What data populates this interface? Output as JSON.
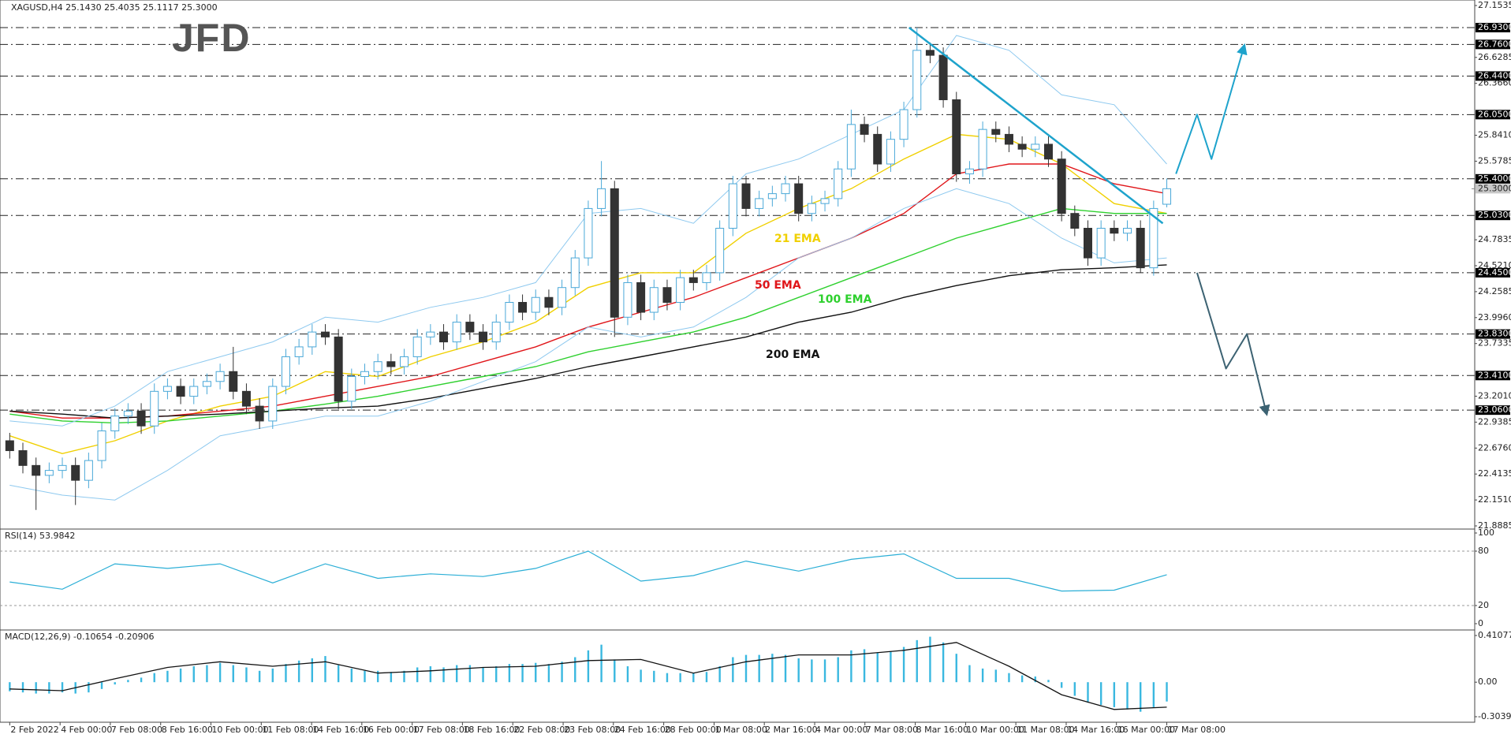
{
  "chart_data": [
    {
      "type": "candlestick",
      "title": "XAGUSD,H4  25.1430 25.4035 25.1117 25.3000",
      "logo": "JFD",
      "open": [
        22.75,
        22.65,
        22.5,
        22.4,
        22.45,
        22.5,
        22.35,
        22.55,
        22.85,
        23.0,
        23.05,
        22.9,
        23.25,
        23.3,
        23.2,
        23.3,
        23.35,
        23.45,
        23.25,
        23.1,
        22.95,
        23.3,
        23.6,
        23.7,
        23.85,
        23.8,
        23.15,
        23.4,
        23.45,
        23.55,
        23.5,
        23.6,
        23.8,
        23.85,
        23.75,
        23.95,
        23.85,
        23.75,
        23.95,
        24.15,
        24.05,
        24.2,
        24.1,
        24.3,
        24.6,
        25.1,
        25.3,
        24.0,
        24.35,
        24.05,
        24.3,
        24.15,
        24.4,
        24.35,
        24.45,
        24.9,
        25.35,
        25.1,
        25.2,
        25.25,
        25.35,
        25.05,
        25.15,
        25.2,
        25.5,
        25.95,
        25.85,
        25.55,
        25.8,
        26.1,
        26.7,
        26.65,
        26.2,
        25.45,
        25.5,
        25.9,
        25.85,
        25.75,
        25.7,
        25.75,
        25.6,
        25.05,
        24.9,
        24.6,
        24.9,
        24.85,
        24.9,
        24.5,
        25.143
      ],
      "high": [
        22.83,
        22.73,
        22.58,
        22.53,
        22.58,
        22.58,
        22.63,
        22.93,
        23.08,
        23.13,
        23.13,
        23.33,
        23.38,
        23.38,
        23.38,
        23.43,
        23.53,
        23.7,
        23.33,
        23.18,
        23.38,
        23.68,
        23.78,
        23.93,
        23.93,
        23.88,
        23.48,
        23.53,
        23.63,
        23.63,
        23.68,
        23.88,
        23.93,
        23.93,
        24.03,
        24.03,
        23.93,
        24.03,
        24.23,
        24.23,
        24.28,
        24.28,
        24.38,
        24.68,
        25.18,
        25.58,
        25.38,
        24.43,
        24.43,
        24.38,
        24.38,
        24.48,
        24.48,
        24.53,
        24.98,
        25.43,
        25.43,
        25.28,
        25.33,
        25.43,
        25.43,
        25.23,
        25.28,
        25.58,
        26.1,
        26.03,
        25.93,
        25.88,
        26.18,
        26.93,
        26.78,
        26.73,
        26.28,
        25.58,
        25.98,
        25.98,
        25.93,
        25.83,
        25.83,
        25.83,
        25.68,
        25.13,
        24.98,
        24.98,
        24.98,
        24.98,
        24.98,
        25.18,
        25.4035
      ],
      "low": [
        22.57,
        22.42,
        22.05,
        22.32,
        22.37,
        22.1,
        22.27,
        22.47,
        22.77,
        22.92,
        22.82,
        22.82,
        23.17,
        23.12,
        23.12,
        23.22,
        23.27,
        23.17,
        23.02,
        22.87,
        22.87,
        23.22,
        23.52,
        23.62,
        23.72,
        23.07,
        23.07,
        23.32,
        23.37,
        23.42,
        23.42,
        23.52,
        23.72,
        23.67,
        23.67,
        23.77,
        23.67,
        23.67,
        23.87,
        23.97,
        23.97,
        24.02,
        24.02,
        24.22,
        24.52,
        25.02,
        23.8,
        23.92,
        23.97,
        23.97,
        24.07,
        24.07,
        24.27,
        24.27,
        24.37,
        24.82,
        25.02,
        25.02,
        25.12,
        25.17,
        24.97,
        24.97,
        25.07,
        25.12,
        25.42,
        25.77,
        25.47,
        25.47,
        25.72,
        26.02,
        26.57,
        26.12,
        25.37,
        25.35,
        25.42,
        25.77,
        25.67,
        25.62,
        25.62,
        25.52,
        24.97,
        24.82,
        24.52,
        24.52,
        24.77,
        24.77,
        24.45,
        24.42,
        25.1117
      ],
      "close": [
        22.65,
        22.5,
        22.4,
        22.45,
        22.5,
        22.35,
        22.55,
        22.85,
        23.0,
        23.05,
        22.9,
        23.25,
        23.3,
        23.2,
        23.3,
        23.35,
        23.45,
        23.25,
        23.1,
        22.95,
        23.3,
        23.6,
        23.7,
        23.85,
        23.8,
        23.15,
        23.4,
        23.45,
        23.55,
        23.5,
        23.6,
        23.8,
        23.85,
        23.75,
        23.95,
        23.85,
        23.75,
        23.95,
        24.15,
        24.05,
        24.2,
        24.1,
        24.3,
        24.6,
        25.1,
        25.3,
        24.0,
        24.35,
        24.05,
        24.3,
        24.15,
        24.4,
        24.35,
        24.45,
        24.9,
        25.35,
        25.1,
        25.2,
        25.25,
        25.35,
        25.05,
        25.15,
        25.2,
        25.5,
        25.95,
        25.85,
        25.55,
        25.8,
        26.1,
        26.7,
        26.65,
        26.2,
        25.45,
        25.5,
        25.9,
        25.85,
        25.75,
        25.7,
        25.75,
        25.6,
        25.05,
        24.9,
        24.6,
        24.9,
        24.85,
        24.9,
        24.5,
        25.1,
        25.3
      ],
      "up_color": "#4aa8d8",
      "down_color": "#333333",
      "xlim": [
        -0.5,
        111.3
      ],
      "xticks": [
        {
          "value": 0,
          "label": "2 Feb 2022"
        },
        {
          "value": 3.83,
          "label": "4 Feb 00:00"
        },
        {
          "value": 7.65,
          "label": "7 Feb 08:00"
        },
        {
          "value": 11.48,
          "label": "8 Feb 16:00"
        },
        {
          "value": 15.3,
          "label": "10 Feb 00:00"
        },
        {
          "value": 19.13,
          "label": "11 Feb 08:00"
        },
        {
          "value": 22.96,
          "label": "14 Feb 16:00"
        },
        {
          "value": 26.78,
          "label": "16 Feb 00:00"
        },
        {
          "value": 30.61,
          "label": "17 Feb 08:00"
        },
        {
          "value": 34.43,
          "label": "18 Feb 16:00"
        },
        {
          "value": 38.26,
          "label": "22 Feb 08:00"
        },
        {
          "value": 42.09,
          "label": "23 Feb 08:00"
        },
        {
          "value": 45.91,
          "label": "24 Feb 16:00"
        },
        {
          "value": 49.74,
          "label": "28 Feb 00:00"
        },
        {
          "value": 53.57,
          "label": "1 Mar 08:00"
        },
        {
          "value": 57.39,
          "label": "2 Mar 16:00"
        },
        {
          "value": 61.22,
          "label": "4 Mar 00:00"
        },
        {
          "value": 65.04,
          "label": "7 Mar 08:00"
        },
        {
          "value": 68.87,
          "label": "8 Mar 16:00"
        },
        {
          "value": 72.7,
          "label": "10 Mar 00:00"
        },
        {
          "value": 76.52,
          "label": "11 Mar 08:00"
        },
        {
          "value": 80.35,
          "label": "14 Mar 16:00"
        },
        {
          "value": 84.17,
          "label": "16 Mar 00:00"
        },
        {
          "value": 88,
          "label": "17 Mar 08:00"
        }
      ],
      "ylim": [
        21.8885,
        27.1535
      ],
      "yticks": [
        27.1535,
        26.6285,
        {
          "value": 26.366,
          "label": "26.3660"
        },
        {
          "value": 25.841,
          "label": "25.8410"
        },
        25.5785,
        24.7835,
        {
          "value": 24.521,
          "label": "24.5210"
        },
        24.2585,
        {
          "value": 23.996,
          "label": "23.9960"
        },
        23.7335,
        {
          "value": 23.201,
          "label": "23.2010"
        },
        22.9385,
        {
          "value": 22.676,
          "label": "22.6760"
        },
        22.4135,
        {
          "value": 22.151,
          "label": "22.1510"
        },
        21.8885
      ],
      "series": [
        {
          "name": "21 EMA",
          "color": "#f0d000",
          "x": [
            0,
            4,
            8,
            12,
            16,
            20,
            24,
            28,
            32,
            36,
            40,
            44,
            48,
            52,
            56,
            60,
            64,
            68,
            72,
            76,
            80,
            84,
            88
          ],
          "values": [
            22.8,
            22.62,
            22.75,
            22.95,
            23.1,
            23.2,
            23.45,
            23.4,
            23.6,
            23.75,
            23.95,
            24.3,
            24.45,
            24.45,
            24.85,
            25.1,
            25.3,
            25.6,
            25.85,
            25.8,
            25.55,
            25.15,
            25.05
          ]
        },
        {
          "name": "50 EMA",
          "color": "#e0161a",
          "x": [
            0,
            4,
            8,
            12,
            16,
            20,
            24,
            28,
            32,
            36,
            40,
            44,
            48,
            52,
            56,
            60,
            64,
            68,
            72,
            76,
            80,
            84,
            88
          ],
          "values": [
            23.05,
            22.98,
            22.98,
            23.0,
            23.05,
            23.1,
            23.2,
            23.3,
            23.4,
            23.55,
            23.7,
            23.9,
            24.05,
            24.2,
            24.4,
            24.6,
            24.8,
            25.05,
            25.45,
            25.55,
            25.55,
            25.35,
            25.25
          ]
        },
        {
          "name": "100 EMA",
          "color": "#2ed02e",
          "x": [
            0,
            4,
            8,
            12,
            16,
            20,
            24,
            28,
            32,
            36,
            40,
            44,
            48,
            52,
            56,
            60,
            64,
            68,
            72,
            76,
            80,
            84,
            88
          ],
          "values": [
            23.02,
            22.95,
            22.93,
            22.95,
            23.0,
            23.05,
            23.12,
            23.2,
            23.3,
            23.4,
            23.5,
            23.65,
            23.75,
            23.85,
            24.0,
            24.2,
            24.4,
            24.6,
            24.8,
            24.95,
            25.1,
            25.05,
            25.05
          ]
        },
        {
          "name": "200 EMA",
          "color": "#111111",
          "x": [
            0,
            4,
            8,
            12,
            16,
            20,
            24,
            28,
            32,
            36,
            40,
            44,
            48,
            52,
            56,
            60,
            64,
            68,
            72,
            76,
            80,
            84,
            88
          ],
          "values": [
            23.05,
            23.02,
            22.98,
            23.0,
            23.02,
            23.05,
            23.08,
            23.1,
            23.18,
            23.28,
            23.38,
            23.5,
            23.6,
            23.7,
            23.8,
            23.95,
            24.05,
            24.2,
            24.32,
            24.42,
            24.48,
            24.5,
            24.53
          ]
        },
        {
          "color": "#8ec9ef",
          "x": [
            0,
            4,
            8,
            12,
            16,
            20,
            24,
            28,
            32,
            36,
            40,
            44,
            48,
            52,
            56,
            60,
            64,
            68,
            72,
            76,
            80,
            84,
            88
          ],
          "values": [
            22.95,
            22.9,
            23.1,
            23.45,
            23.6,
            23.75,
            24.0,
            23.95,
            24.1,
            24.2,
            24.35,
            25.05,
            25.1,
            24.95,
            25.45,
            25.6,
            25.85,
            26.1,
            26.85,
            26.7,
            26.25,
            26.15,
            25.55
          ]
        },
        {
          "color": "#8ec9ef",
          "x": [
            0,
            4,
            8,
            12,
            16,
            20,
            24,
            28,
            32,
            36,
            40,
            44,
            48,
            52,
            56,
            60,
            64,
            68,
            72,
            76,
            80,
            84,
            88
          ],
          "values": [
            22.3,
            22.2,
            22.15,
            22.45,
            22.8,
            22.9,
            23.0,
            23.0,
            23.15,
            23.35,
            23.55,
            23.9,
            23.8,
            23.9,
            24.2,
            24.6,
            24.8,
            25.1,
            25.3,
            25.15,
            24.8,
            24.55,
            24.6
          ]
        }
      ],
      "levels": [
        {
          "value": 26.93,
          "label": "26.9300"
        },
        {
          "value": 26.76,
          "label": "26.7600"
        },
        {
          "value": 26.44,
          "label": "26.4400"
        },
        {
          "value": 26.05,
          "label": "26.0500"
        },
        {
          "value": 25.4,
          "label": "25.4000"
        },
        {
          "value": 25.03,
          "label": "25.0300"
        },
        {
          "value": 24.45,
          "label": "24.4500"
        },
        {
          "value": 23.83,
          "label": "23.8300"
        },
        {
          "value": 23.41,
          "label": "23.4100"
        },
        {
          "value": 23.06,
          "label": "23.0600"
        }
      ],
      "last_price": {
        "value": 25.3,
        "label": "25.3000"
      },
      "trendline": {
        "color": "#1ea3cc",
        "x": [
          68.4,
          87.7
        ],
        "values": [
          26.93,
          24.95
        ]
      },
      "scenarios": [
        {
          "color": "#1ea3cc",
          "x": [
            88.7,
            90.3,
            91.4,
            93.9
          ],
          "values": [
            25.45,
            26.05,
            25.6,
            26.75
          ]
        },
        {
          "color": "#3c6272",
          "x": [
            90.3,
            92.5,
            94.1,
            95.6
          ],
          "values": [
            24.45,
            23.48,
            23.83,
            23.02
          ]
        }
      ]
    },
    {
      "type": "line",
      "title": "RSI(14) 53.9842",
      "color": "#2aaed6",
      "x": [
        0,
        4,
        8,
        12,
        16,
        20,
        24,
        28,
        32,
        36,
        40,
        44,
        48,
        52,
        56,
        60,
        64,
        68,
        72,
        76,
        80,
        84,
        88
      ],
      "values": [
        46,
        38,
        66,
        61,
        66,
        45,
        66,
        50,
        55,
        52,
        61,
        80,
        47,
        53,
        69,
        58,
        71,
        77,
        50,
        50,
        36,
        37,
        54
      ],
      "ylim": [
        0,
        100
      ],
      "yticks": [
        100,
        80,
        20,
        0
      ],
      "dashed_ticks": [
        80,
        20
      ]
    },
    {
      "type": "bar",
      "title": "MACD(12,26,9) -0.10654 -0.20906",
      "color": "#3ab8e0",
      "values": [
        -0.08,
        -0.09,
        -0.1,
        -0.1,
        -0.09,
        -0.1,
        -0.09,
        -0.06,
        -0.02,
        0.02,
        0.04,
        0.08,
        0.1,
        0.12,
        0.14,
        0.15,
        0.17,
        0.15,
        0.13,
        0.1,
        0.12,
        0.16,
        0.19,
        0.21,
        0.23,
        0.15,
        0.12,
        0.1,
        0.1,
        0.09,
        0.1,
        0.13,
        0.14,
        0.13,
        0.15,
        0.15,
        0.13,
        0.14,
        0.16,
        0.16,
        0.17,
        0.16,
        0.18,
        0.22,
        0.28,
        0.33,
        0.2,
        0.14,
        0.11,
        0.1,
        0.08,
        0.08,
        0.08,
        0.09,
        0.14,
        0.22,
        0.24,
        0.24,
        0.25,
        0.24,
        0.21,
        0.2,
        0.2,
        0.22,
        0.28,
        0.29,
        0.26,
        0.27,
        0.31,
        0.37,
        0.4,
        0.35,
        0.25,
        0.15,
        0.12,
        0.11,
        0.08,
        0.06,
        0.05,
        0.02,
        -0.05,
        -0.12,
        -0.18,
        -0.2,
        -0.22,
        -0.24,
        -0.26,
        -0.22,
        -0.17
      ],
      "signal": {
        "color": "#111111",
        "x": [
          0,
          4,
          8,
          12,
          16,
          20,
          24,
          28,
          32,
          36,
          40,
          44,
          48,
          52,
          56,
          60,
          64,
          68,
          72,
          76,
          80,
          84,
          88
        ],
        "values": [
          -0.06,
          -0.075,
          0.03,
          0.13,
          0.18,
          0.14,
          0.18,
          0.08,
          0.1,
          0.13,
          0.14,
          0.19,
          0.2,
          0.08,
          0.18,
          0.24,
          0.24,
          0.28,
          0.35,
          0.14,
          -0.11,
          -0.24,
          -0.22
        ]
      },
      "ylim": [
        -0.30391,
        0.41077
      ],
      "yticks": [
        0.41077,
        {
          "value": 0,
          "label": "0.00"
        },
        -0.30391
      ]
    }
  ]
}
